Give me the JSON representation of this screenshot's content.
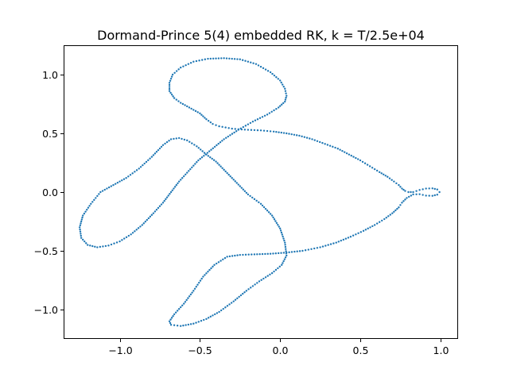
{
  "chart_data": {
    "type": "scatter",
    "title": "Dormand-Prince 5(4) embedded RK, k = T/2.5e+04",
    "xlabel": "",
    "ylabel": "",
    "xlim": [
      -1.35,
      1.11
    ],
    "ylim": [
      -1.25,
      1.25
    ],
    "grid": false,
    "marker_color": "#1f77b4",
    "x_ticks": [
      {
        "value": -1.0,
        "label": "−1.0"
      },
      {
        "value": -0.5,
        "label": "−0.5"
      },
      {
        "value": 0.0,
        "label": "0.0"
      },
      {
        "value": 0.5,
        "label": "0.5"
      },
      {
        "value": 1.0,
        "label": "1.0"
      }
    ],
    "y_ticks": [
      {
        "value": -1.0,
        "label": "−1.0"
      },
      {
        "value": -0.5,
        "label": "−0.5"
      },
      {
        "value": 0.0,
        "label": "0.0"
      },
      {
        "value": 0.5,
        "label": "0.5"
      },
      {
        "value": 1.0,
        "label": "1.0"
      }
    ],
    "series": [
      {
        "x": [
          0.994,
          0.98,
          0.95,
          0.91,
          0.87,
          0.83,
          0.8,
          0.78,
          0.76,
          0.74,
          0.71,
          0.67,
          0.62,
          0.56,
          0.5,
          0.43,
          0.36,
          0.28,
          0.2,
          0.12,
          0.04,
          -0.04,
          -0.12,
          -0.2,
          -0.26,
          -0.3,
          -0.34,
          -0.38,
          -0.42,
          -0.46,
          -0.5,
          -0.54,
          -0.58,
          -0.62,
          -0.66,
          -0.69,
          -0.69,
          -0.67,
          -0.62,
          -0.54,
          -0.45,
          -0.35,
          -0.25,
          -0.15,
          -0.06,
          0.0,
          0.03,
          0.04,
          0.03,
          -0.01,
          -0.08,
          -0.17,
          -0.26,
          -0.35,
          -0.43,
          -0.51,
          -0.57,
          -0.63,
          -0.68,
          -0.73,
          -0.79,
          -0.86,
          -0.93,
          -1.0,
          -1.07,
          -1.14,
          -1.2,
          -1.24,
          -1.25,
          -1.23,
          -1.18,
          -1.12,
          -1.04,
          -0.96,
          -0.88,
          -0.8,
          -0.73,
          -0.68,
          -0.63,
          -0.58,
          -0.52,
          -0.46,
          -0.4,
          -0.35,
          -0.3,
          -0.25,
          -0.2,
          -0.12,
          -0.05,
          0.0,
          0.03,
          0.04,
          0.01,
          -0.05,
          -0.13,
          -0.21,
          -0.29,
          -0.38,
          -0.46,
          -0.54,
          -0.62,
          -0.68,
          -0.69,
          -0.66,
          -0.6,
          -0.54,
          -0.48,
          -0.41,
          -0.33,
          -0.25,
          -0.16,
          -0.06,
          0.04,
          0.14,
          0.25,
          0.35,
          0.44,
          0.52,
          0.59,
          0.65,
          0.7,
          0.74,
          0.76,
          0.79,
          0.83,
          0.87,
          0.91,
          0.95,
          0.98,
          0.994
        ],
        "y": [
          0.0,
          0.022,
          0.032,
          0.03,
          0.018,
          0.0,
          0.0,
          0.01,
          0.03,
          0.06,
          0.09,
          0.13,
          0.17,
          0.22,
          0.27,
          0.32,
          0.37,
          0.41,
          0.45,
          0.48,
          0.5,
          0.515,
          0.525,
          0.53,
          0.535,
          0.54,
          0.55,
          0.56,
          0.58,
          0.62,
          0.67,
          0.7,
          0.73,
          0.76,
          0.8,
          0.86,
          0.93,
          1.0,
          1.06,
          1.11,
          1.135,
          1.14,
          1.13,
          1.09,
          1.02,
          0.95,
          0.88,
          0.82,
          0.77,
          0.72,
          0.66,
          0.6,
          0.53,
          0.45,
          0.36,
          0.27,
          0.18,
          0.09,
          0.0,
          -0.09,
          -0.18,
          -0.28,
          -0.36,
          -0.42,
          -0.455,
          -0.47,
          -0.45,
          -0.39,
          -0.3,
          -0.2,
          -0.1,
          0.0,
          0.06,
          0.12,
          0.2,
          0.3,
          0.4,
          0.45,
          0.46,
          0.44,
          0.39,
          0.32,
          0.26,
          0.19,
          0.12,
          0.05,
          -0.02,
          -0.1,
          -0.2,
          -0.31,
          -0.43,
          -0.54,
          -0.62,
          -0.69,
          -0.76,
          -0.84,
          -0.93,
          -1.02,
          -1.08,
          -1.12,
          -1.14,
          -1.13,
          -1.1,
          -1.04,
          -0.95,
          -0.84,
          -0.72,
          -0.62,
          -0.55,
          -0.535,
          -0.53,
          -0.525,
          -0.515,
          -0.5,
          -0.47,
          -0.43,
          -0.38,
          -0.33,
          -0.28,
          -0.23,
          -0.18,
          -0.13,
          -0.09,
          -0.05,
          -0.02,
          -0.018,
          -0.03,
          -0.032,
          -0.022,
          0.0
        ]
      }
    ]
  }
}
